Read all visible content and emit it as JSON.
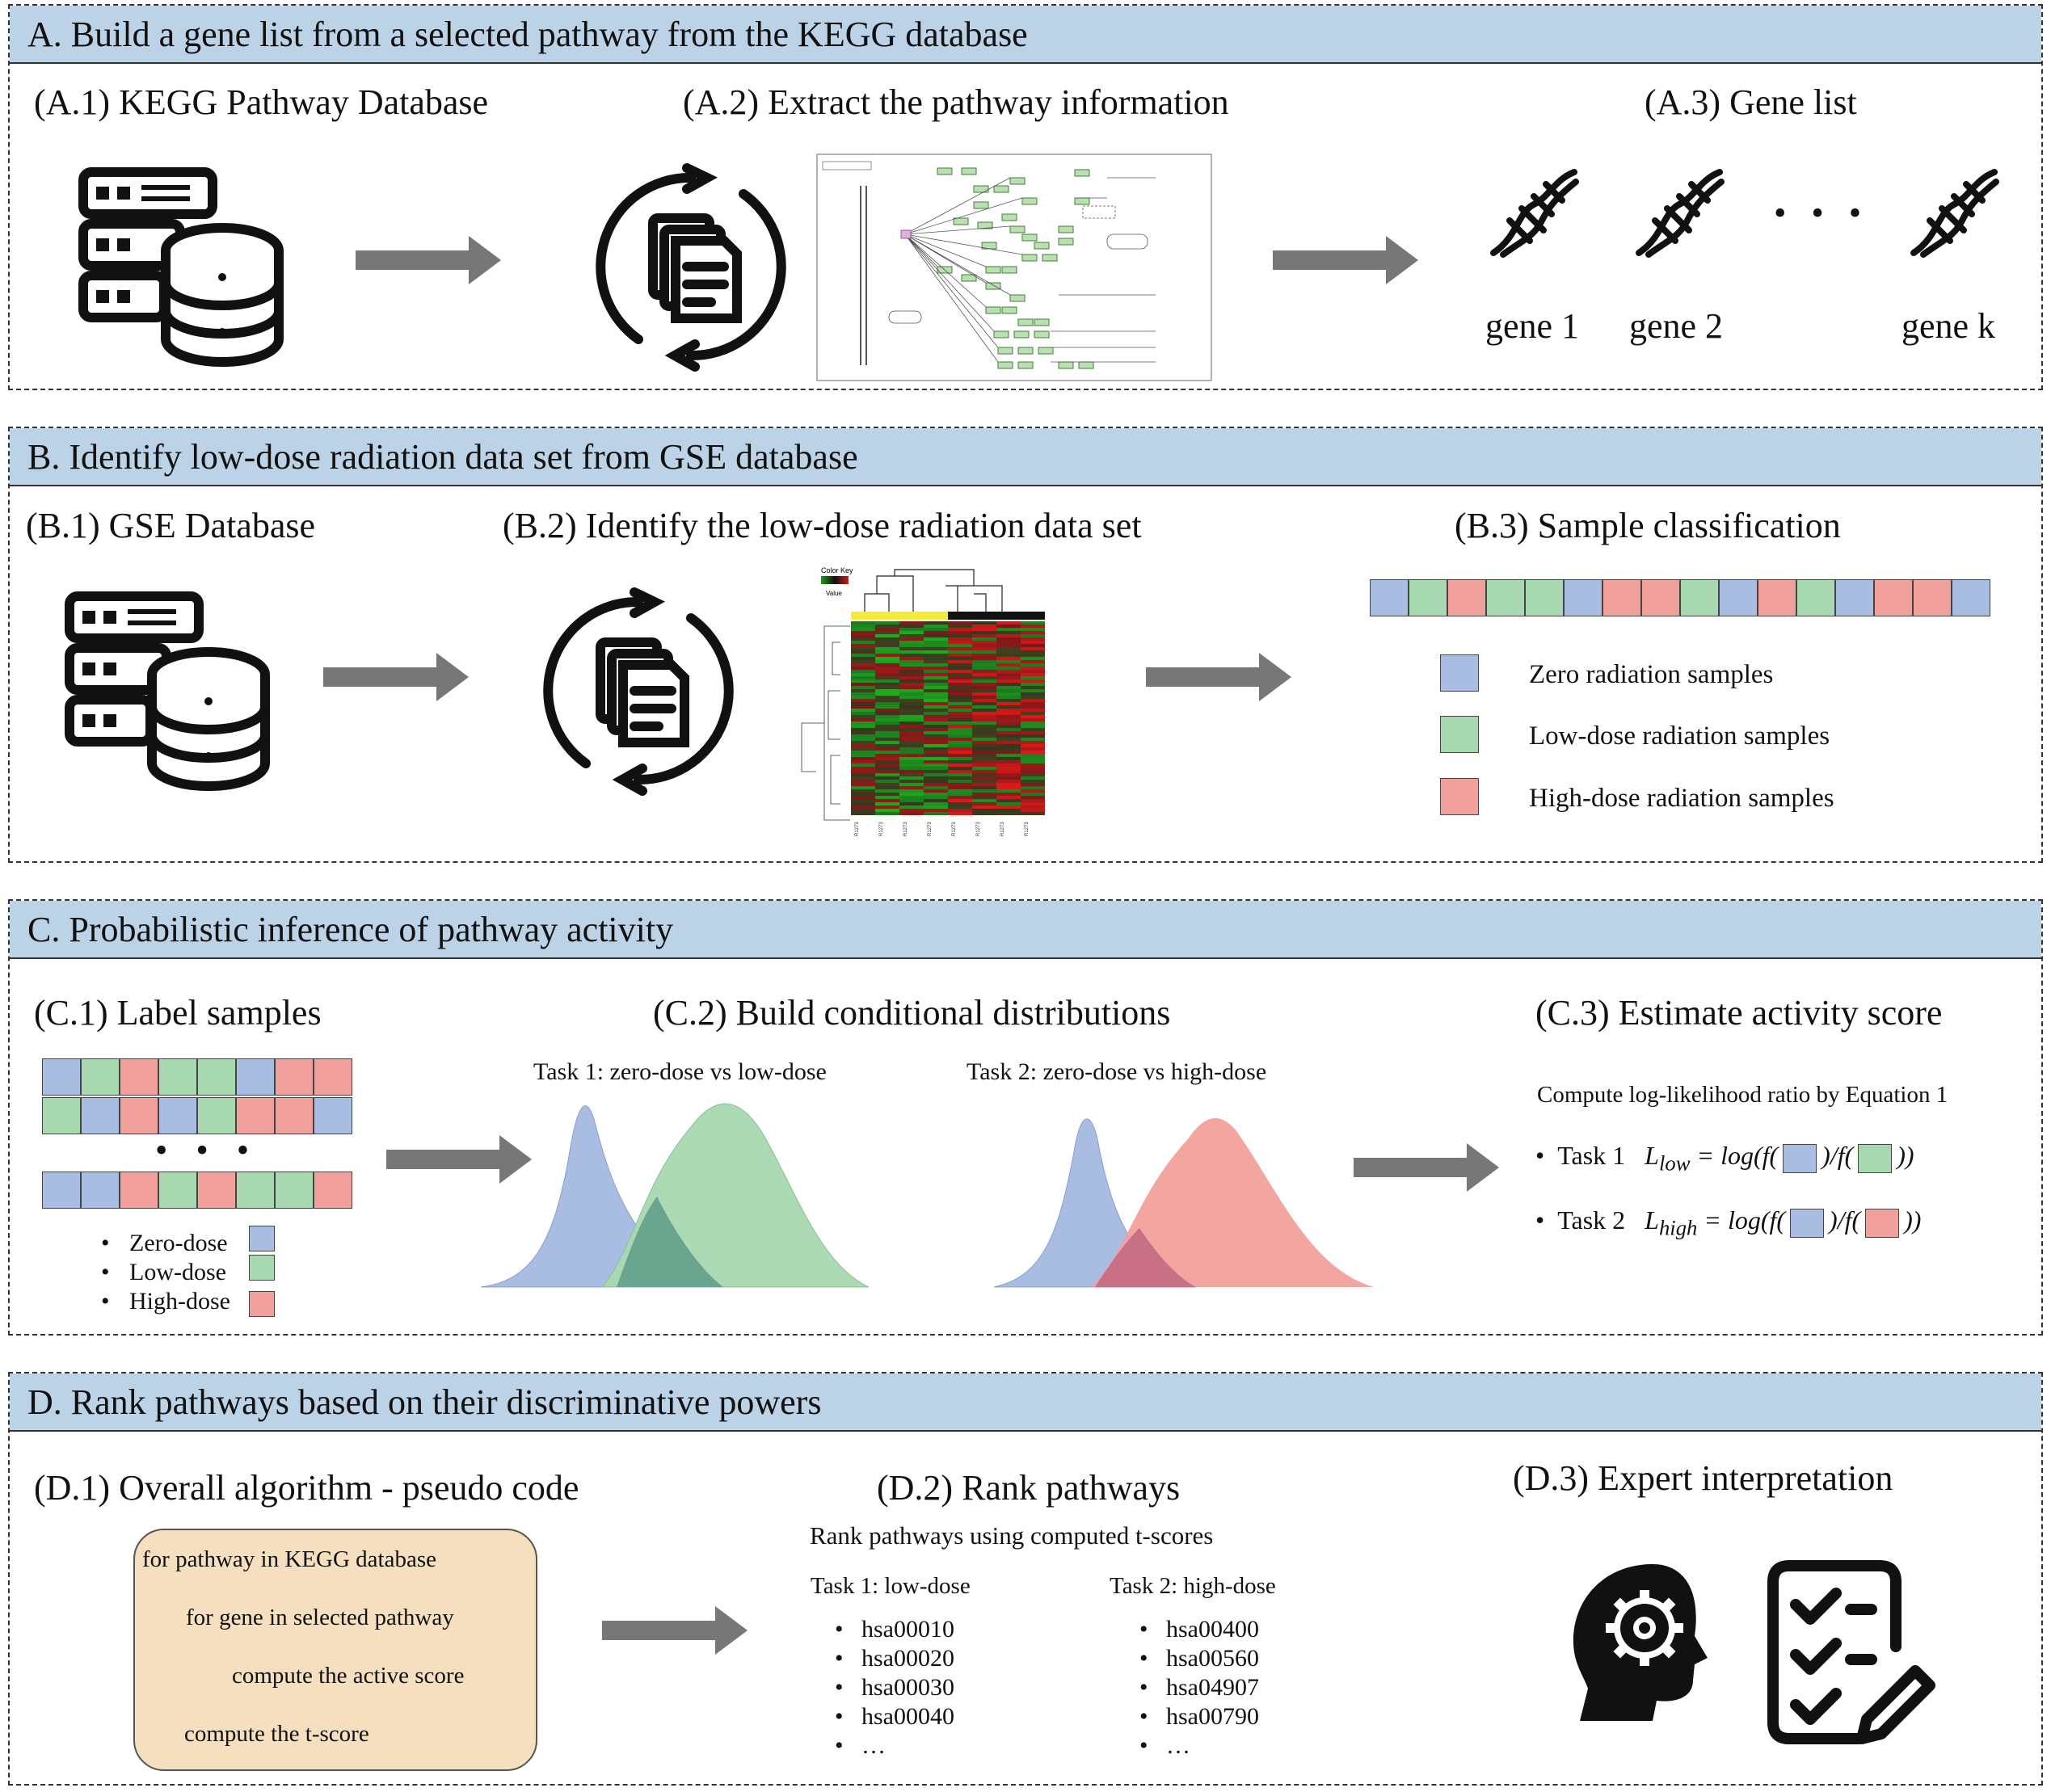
{
  "colors": {
    "header_bg": "#bcd2e6",
    "zero": "#a9bde3",
    "low": "#a8d8b0",
    "high": "#f2a09b",
    "arrow": "#777777",
    "code_bg": "#f6dfbe"
  },
  "panelA": {
    "title": "A. Build a gene list from a selected pathway from the KEGG database",
    "a1": "(A.1) KEGG Pathway Database",
    "a2": "(A.2) Extract the pathway information",
    "a3": "(A.3) Gene list",
    "genes": [
      "gene 1",
      "gene 2",
      "gene k"
    ],
    "ellipsis": "• • •"
  },
  "panelB": {
    "title": "B. Identify low-dose radiation data set from GSE database",
    "b1": "(B.1) GSE Database",
    "b2": "(B.2) Identify the low-dose radiation data set",
    "b3": "(B.3) Sample classification",
    "sample_strip": [
      "zero",
      "low",
      "high",
      "low",
      "low",
      "zero",
      "high",
      "high",
      "low",
      "zero",
      "high",
      "low",
      "zero",
      "high",
      "high",
      "zero"
    ],
    "legend": [
      {
        "key": "zero",
        "label": "Zero radiation samples"
      },
      {
        "key": "low",
        "label": "Low-dose radiation samples"
      },
      {
        "key": "high",
        "label": "High-dose radiation samples"
      }
    ],
    "heatmap_key": "Color Key",
    "heatmap_value": "Value"
  },
  "panelC": {
    "title": "C. Probabilistic inference of pathway activity",
    "c1": "(C.1) Label samples",
    "c2": "(C.2) Build conditional distributions",
    "c3": "(C.3) Estimate activity score",
    "rows": [
      [
        "zero",
        "low",
        "high",
        "low",
        "low",
        "zero",
        "high",
        "high"
      ],
      [
        "low",
        "zero",
        "high",
        "zero",
        "low",
        "high",
        "high",
        "zero"
      ],
      [
        "zero",
        "zero",
        "high",
        "low",
        "high",
        "low",
        "low",
        "high"
      ]
    ],
    "dots": "• • •",
    "legend": [
      {
        "key": "zero",
        "label": "Zero-dose"
      },
      {
        "key": "low",
        "label": "Low-dose"
      },
      {
        "key": "high",
        "label": "High-dose"
      }
    ],
    "task1": "Task 1: zero-dose vs low-dose",
    "task2": "Task 2: zero-dose vs high-dose",
    "compute": "Compute log-likelihood ratio by Equation 1",
    "eq_task1": "Task 1",
    "eq_task2": "Task 2",
    "eq_L": "L",
    "eq_sub_low": "low",
    "eq_sub_high": "high",
    "eq_open": "= log(f(",
    "eq_mid": ")/f(",
    "eq_close": "))"
  },
  "panelD": {
    "title": "D. Rank pathways based on their discriminative powers",
    "d1": "(D.1) Overall algorithm - pseudo code",
    "d2": "(D.2) Rank pathways",
    "d3": "(D.3) Expert interpretation",
    "code": [
      "for   pathway   in   KEGG database",
      "for   gene   in   selected pathway",
      "compute the active score",
      "compute the t-score"
    ],
    "rank_caption": "Rank pathways using computed t-scores",
    "task1_head": "Task 1: low-dose",
    "task2_head": "Task 2: high-dose",
    "task1_list": [
      "hsa00010",
      "hsa00020",
      "hsa00030",
      "hsa00040",
      "…"
    ],
    "task2_list": [
      "hsa00400",
      "hsa00560",
      "hsa04907",
      "hsa00790",
      "…"
    ]
  }
}
